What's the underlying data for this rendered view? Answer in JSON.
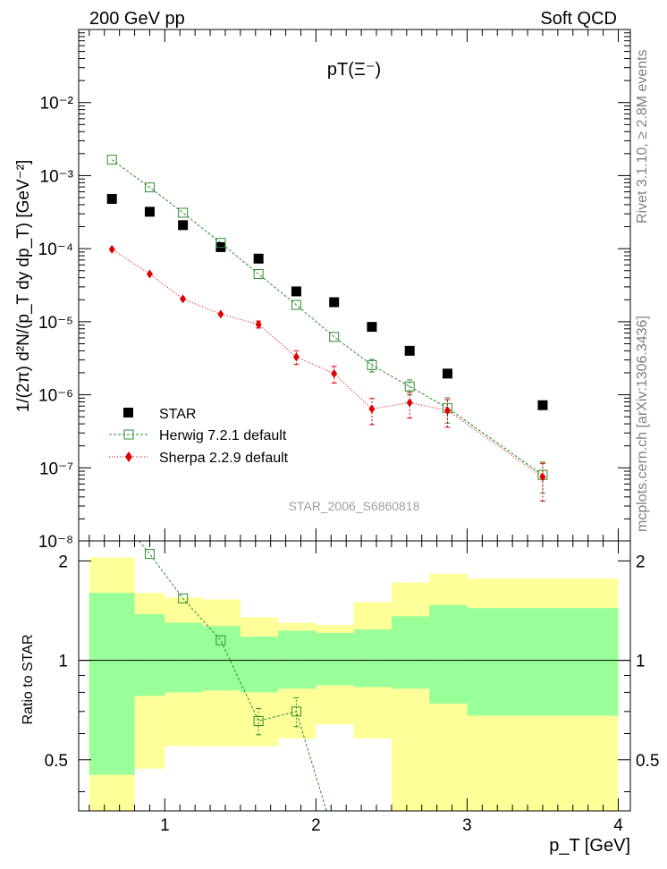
{
  "header": {
    "left": "200 GeV pp",
    "right": "Soft QCD"
  },
  "side_labels": {
    "rivet": "Rivet 3.1.10, ≥ 2.8M events",
    "mcplots": "mcplots.cern.ch [arXiv:1306.3436]"
  },
  "watermark": "STAR_2006_S6860818",
  "colors": {
    "star": "#000000",
    "herwig": "#2e8b2e",
    "sherpa": "#e00000",
    "band_inner": "#99ff99",
    "band_outer": "#ffff99"
  },
  "chart_data": [
    {
      "type": "scatter",
      "title": "pT(Ξ⁻)",
      "xlabel": "",
      "ylabel": "1/(2π) d²N/(p_T dy dp_T) [GeV⁻²]",
      "xlim": [
        0.43,
        4.08
      ],
      "ylim": [
        1e-08,
        0.1
      ],
      "y_scale": "log",
      "y_ticks": [
        "10⁻⁸",
        "10⁻⁷",
        "10⁻⁶",
        "10⁻⁵",
        "10⁻⁴",
        "10⁻³",
        "10⁻²"
      ],
      "legend_position": "bottom-left",
      "series": [
        {
          "name": "STAR",
          "style": "marker",
          "x": [
            0.65,
            0.9,
            1.12,
            1.37,
            1.62,
            1.87,
            2.12,
            2.37,
            2.62,
            2.87,
            3.5
          ],
          "y": [
            0.00048,
            0.00032,
            0.00021,
            0.000105,
            7.3e-05,
            2.6e-05,
            1.85e-05,
            8.5e-06,
            4e-06,
            1.95e-06,
            7.2e-07
          ]
        },
        {
          "name": "Herwig 7.2.1 default",
          "style": "dashed-open-square",
          "x": [
            0.65,
            0.9,
            1.12,
            1.37,
            1.62,
            1.87,
            2.12,
            2.37,
            2.62,
            2.87,
            3.5
          ],
          "y": [
            0.00165,
            0.00069,
            0.00031,
            0.00012,
            4.5e-05,
            1.7e-05,
            6.2e-06,
            2.55e-06,
            1.3e-06,
            6.6e-07,
            8e-08
          ],
          "err_lo": [
            0,
            0,
            0,
            0,
            0,
            0,
            0,
            5e-07,
            3e-07,
            2.5e-07,
            3.5e-08
          ],
          "err_hi": [
            0,
            0,
            0,
            0,
            0,
            0,
            0,
            5e-07,
            3e-07,
            2.5e-07,
            4e-08
          ]
        },
        {
          "name": "Sherpa 2.2.9 default",
          "style": "dotted-diamond",
          "x": [
            0.65,
            0.9,
            1.12,
            1.37,
            1.62,
            1.87,
            2.12,
            2.37,
            2.62,
            2.87,
            3.5
          ],
          "y": [
            9.8e-05,
            4.5e-05,
            2.05e-05,
            1.27e-05,
            9.2e-06,
            3.3e-06,
            1.95e-06,
            6.4e-07,
            7.8e-07,
            6.1e-07,
            7.5e-08
          ],
          "err_lo": [
            0,
            0,
            0,
            0,
            1e-06,
            7e-07,
            5e-07,
            2.5e-07,
            3e-07,
            2.5e-07,
            4e-08
          ],
          "err_hi": [
            0,
            0,
            0,
            0,
            1e-06,
            7e-07,
            5e-07,
            2.5e-07,
            3e-07,
            2.5e-07,
            4e-08
          ]
        }
      ]
    },
    {
      "type": "line",
      "xlabel": "p_T [GeV]",
      "ylabel": "Ratio to STAR",
      "xlim": [
        0.43,
        4.08
      ],
      "ylim": [
        0.35,
        2.3
      ],
      "y_scale": "log",
      "x_ticks": [
        "1",
        "2",
        "3",
        "4"
      ],
      "y_ticks": [
        "0.5",
        "1",
        "2"
      ],
      "reference_line": 1,
      "bands": {
        "bin_edges": [
          0.5,
          0.8,
          1.0,
          1.25,
          1.5,
          1.75,
          2.0,
          2.25,
          2.5,
          2.75,
          3.0,
          4.0
        ],
        "inner_lo": [
          0.45,
          0.78,
          0.8,
          0.81,
          0.8,
          0.82,
          0.84,
          0.83,
          0.82,
          0.74,
          0.68
        ],
        "inner_hi": [
          1.6,
          1.38,
          1.3,
          1.27,
          1.18,
          1.23,
          1.21,
          1.24,
          1.36,
          1.47,
          1.44
        ],
        "outer_lo": [
          0.35,
          0.47,
          0.55,
          0.55,
          0.55,
          0.58,
          0.64,
          0.58,
          0.35,
          0.35,
          0.35
        ],
        "outer_hi": [
          2.05,
          1.6,
          1.55,
          1.53,
          1.35,
          1.3,
          1.28,
          1.5,
          1.72,
          1.83,
          1.77
        ]
      },
      "series": [
        {
          "name": "Herwig 7.2.1 default",
          "style": "dashed-open-square",
          "x": [
            0.83,
            0.9,
            1.12,
            1.37,
            1.62,
            1.87,
            2.07
          ],
          "y": [
            2.3,
            2.1,
            1.54,
            1.15,
            0.655,
            0.7,
            0.35
          ],
          "marker": [
            false,
            true,
            true,
            true,
            true,
            true,
            false
          ]
        }
      ]
    }
  ]
}
